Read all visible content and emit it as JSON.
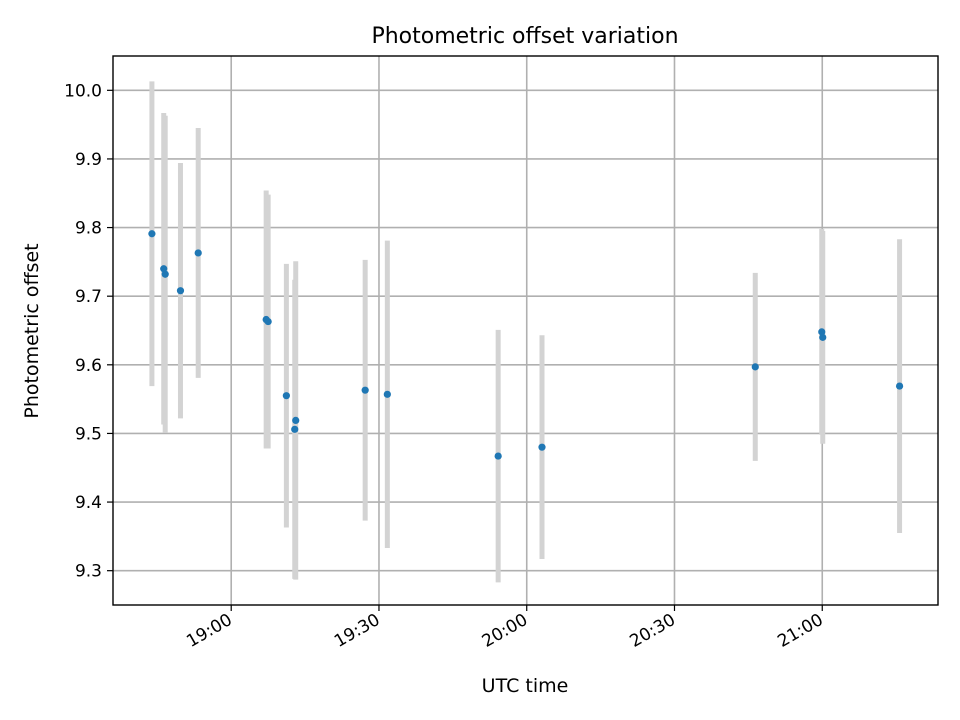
{
  "chart_data": {
    "type": "scatter",
    "title": "Photometric offset variation",
    "xlabel": "UTC time",
    "ylabel": "Photometric offset",
    "grid": true,
    "x_unit": "minutes after 18:00 UTC",
    "xlim": [
      36,
      203.5
    ],
    "ylim": [
      9.25,
      10.05
    ],
    "x_ticks": [
      {
        "value": 60,
        "label": "19:00"
      },
      {
        "value": 90,
        "label": "19:30"
      },
      {
        "value": 120,
        "label": "20:00"
      },
      {
        "value": 150,
        "label": "20:30"
      },
      {
        "value": 180,
        "label": "21:00"
      }
    ],
    "y_ticks": [
      {
        "value": 9.3,
        "label": "9.3"
      },
      {
        "value": 9.4,
        "label": "9.4"
      },
      {
        "value": 9.5,
        "label": "9.5"
      },
      {
        "value": 9.6,
        "label": "9.6"
      },
      {
        "value": 9.7,
        "label": "9.7"
      },
      {
        "value": 9.8,
        "label": "9.8"
      },
      {
        "value": 9.9,
        "label": "9.9"
      },
      {
        "value": 10.0,
        "label": "10.0"
      }
    ],
    "point_color": "#1f77b4",
    "errorbar_color": "#d3d3d3",
    "series": [
      {
        "name": "offset",
        "points": [
          {
            "x": 43.9,
            "y": 9.791,
            "err": 0.222
          },
          {
            "x": 46.3,
            "y": 9.74,
            "err": 0.227
          },
          {
            "x": 46.6,
            "y": 9.732,
            "err": 0.231
          },
          {
            "x": 49.7,
            "y": 9.708,
            "err": 0.186
          },
          {
            "x": 53.3,
            "y": 9.763,
            "err": 0.182
          },
          {
            "x": 67.1,
            "y": 9.666,
            "err": 0.188
          },
          {
            "x": 67.5,
            "y": 9.663,
            "err": 0.185
          },
          {
            "x": 71.2,
            "y": 9.555,
            "err": 0.192
          },
          {
            "x": 73.1,
            "y": 9.519,
            "err": 0.232
          },
          {
            "x": 72.9,
            "y": 9.506,
            "err": 0.218
          },
          {
            "x": 87.2,
            "y": 9.563,
            "err": 0.19
          },
          {
            "x": 91.7,
            "y": 9.557,
            "err": 0.224
          },
          {
            "x": 114.2,
            "y": 9.467,
            "err": 0.184
          },
          {
            "x": 123.1,
            "y": 9.48,
            "err": 0.163
          },
          {
            "x": 166.4,
            "y": 9.597,
            "err": 0.137
          },
          {
            "x": 179.9,
            "y": 9.648,
            "err": 0.15
          },
          {
            "x": 180.1,
            "y": 9.64,
            "err": 0.155
          },
          {
            "x": 195.7,
            "y": 9.569,
            "err": 0.214
          }
        ]
      }
    ]
  }
}
